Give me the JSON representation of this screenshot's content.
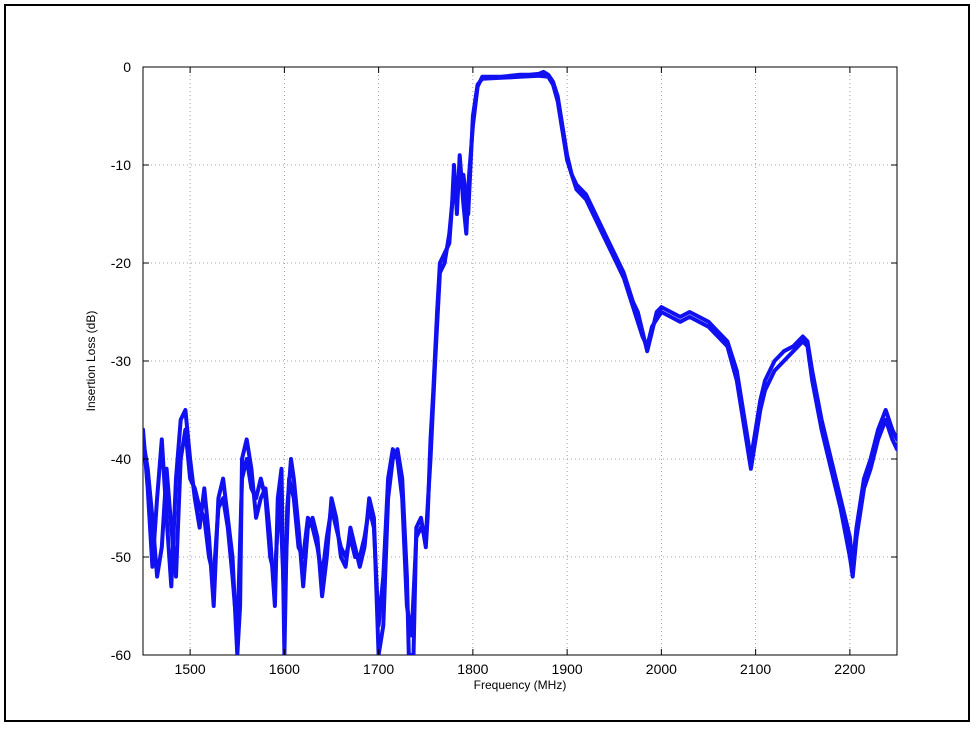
{
  "chart_data": {
    "type": "line",
    "title": "",
    "xlabel": "Frequency (MHz)",
    "ylabel": "Insertion Loss (dB)",
    "xlim": [
      1450,
      2250
    ],
    "ylim": [
      -60,
      0
    ],
    "xticks": [
      1500,
      1600,
      1700,
      1800,
      1900,
      2000,
      2100,
      2200
    ],
    "yticks": [
      0,
      -10,
      -20,
      -30,
      -40,
      -50,
      -60
    ],
    "grid": true,
    "line_color": "#1010f0",
    "series": [
      {
        "values": [
          [
            1450,
            -37
          ],
          [
            1455,
            -43
          ],
          [
            1460,
            -51
          ],
          [
            1465,
            -44
          ],
          [
            1470,
            -38
          ],
          [
            1475,
            -46
          ],
          [
            1480,
            -53
          ],
          [
            1485,
            -42
          ],
          [
            1490,
            -36
          ],
          [
            1495,
            -35
          ],
          [
            1500,
            -40
          ],
          [
            1505,
            -44
          ],
          [
            1510,
            -47
          ],
          [
            1515,
            -43
          ],
          [
            1520,
            -48
          ],
          [
            1525,
            -55
          ],
          [
            1530,
            -44
          ],
          [
            1535,
            -42
          ],
          [
            1540,
            -46
          ],
          [
            1545,
            -50
          ],
          [
            1550,
            -60
          ],
          [
            1553,
            -55
          ],
          [
            1555,
            -40
          ],
          [
            1560,
            -38
          ],
          [
            1565,
            -41
          ],
          [
            1570,
            -46
          ],
          [
            1575,
            -44
          ],
          [
            1580,
            -43
          ],
          [
            1585,
            -48
          ],
          [
            1590,
            -55
          ],
          [
            1593,
            -44
          ],
          [
            1597,
            -41
          ],
          [
            1600,
            -60
          ],
          [
            1603,
            -45
          ],
          [
            1607,
            -40
          ],
          [
            1610,
            -42
          ],
          [
            1615,
            -47
          ],
          [
            1620,
            -53
          ],
          [
            1625,
            -47
          ],
          [
            1630,
            -46
          ],
          [
            1635,
            -48
          ],
          [
            1640,
            -54
          ],
          [
            1645,
            -50
          ],
          [
            1650,
            -44
          ],
          [
            1655,
            -46
          ],
          [
            1660,
            -50
          ],
          [
            1665,
            -51
          ],
          [
            1670,
            -47
          ],
          [
            1675,
            -49
          ],
          [
            1680,
            -51
          ],
          [
            1685,
            -49
          ],
          [
            1690,
            -44
          ],
          [
            1695,
            -46
          ],
          [
            1700,
            -60
          ],
          [
            1705,
            -57
          ],
          [
            1710,
            -44
          ],
          [
            1715,
            -40
          ],
          [
            1720,
            -39
          ],
          [
            1725,
            -42
          ],
          [
            1730,
            -52
          ],
          [
            1732,
            -60
          ],
          [
            1737,
            -60
          ],
          [
            1740,
            -47
          ],
          [
            1745,
            -46
          ],
          [
            1750,
            -49
          ],
          [
            1752,
            -46
          ],
          [
            1755,
            -38
          ],
          [
            1758,
            -33
          ],
          [
            1762,
            -25
          ],
          [
            1765,
            -20
          ],
          [
            1770,
            -19
          ],
          [
            1775,
            -18
          ],
          [
            1778,
            -14
          ],
          [
            1780,
            -10
          ],
          [
            1783,
            -15
          ],
          [
            1786,
            -9
          ],
          [
            1790,
            -14
          ],
          [
            1793,
            -17
          ],
          [
            1796,
            -11
          ],
          [
            1800,
            -6
          ],
          [
            1805,
            -2
          ],
          [
            1810,
            -1
          ],
          [
            1830,
            -1
          ],
          [
            1850,
            -0.8
          ],
          [
            1860,
            -0.8
          ],
          [
            1870,
            -0.7
          ],
          [
            1875,
            -0.5
          ],
          [
            1880,
            -0.8
          ],
          [
            1885,
            -1.5
          ],
          [
            1890,
            -3
          ],
          [
            1895,
            -6
          ],
          [
            1900,
            -9
          ],
          [
            1905,
            -11
          ],
          [
            1910,
            -12
          ],
          [
            1920,
            -13
          ],
          [
            1930,
            -15
          ],
          [
            1940,
            -17
          ],
          [
            1950,
            -19
          ],
          [
            1960,
            -21
          ],
          [
            1970,
            -24
          ],
          [
            1975,
            -25
          ],
          [
            1980,
            -27
          ],
          [
            1985,
            -29
          ],
          [
            1990,
            -27
          ],
          [
            1995,
            -25
          ],
          [
            2000,
            -24.5
          ],
          [
            2010,
            -25
          ],
          [
            2020,
            -25.5
          ],
          [
            2030,
            -25
          ],
          [
            2040,
            -25.5
          ],
          [
            2050,
            -26
          ],
          [
            2060,
            -27
          ],
          [
            2070,
            -28
          ],
          [
            2080,
            -31
          ],
          [
            2090,
            -37
          ],
          [
            2095,
            -40
          ],
          [
            2100,
            -37
          ],
          [
            2105,
            -34
          ],
          [
            2110,
            -32
          ],
          [
            2120,
            -30
          ],
          [
            2130,
            -29
          ],
          [
            2140,
            -28.5
          ],
          [
            2150,
            -27.5
          ],
          [
            2155,
            -28
          ],
          [
            2160,
            -31
          ],
          [
            2170,
            -36
          ],
          [
            2180,
            -40
          ],
          [
            2190,
            -44
          ],
          [
            2200,
            -48
          ],
          [
            2203,
            -51
          ],
          [
            2207,
            -47
          ],
          [
            2215,
            -42
          ],
          [
            2222,
            -40
          ],
          [
            2230,
            -37
          ],
          [
            2238,
            -35
          ],
          [
            2245,
            -37
          ],
          [
            2250,
            -38
          ]
        ]
      },
      {
        "values": [
          [
            1450,
            -38
          ],
          [
            1455,
            -41
          ],
          [
            1460,
            -46
          ],
          [
            1465,
            -52
          ],
          [
            1470,
            -49
          ],
          [
            1475,
            -41
          ],
          [
            1480,
            -47
          ],
          [
            1485,
            -52
          ],
          [
            1490,
            -40
          ],
          [
            1495,
            -37
          ],
          [
            1500,
            -42
          ],
          [
            1505,
            -43
          ],
          [
            1510,
            -45
          ],
          [
            1515,
            -46
          ],
          [
            1520,
            -50
          ],
          [
            1525,
            -52
          ],
          [
            1530,
            -45
          ],
          [
            1535,
            -44
          ],
          [
            1540,
            -47
          ],
          [
            1545,
            -52
          ],
          [
            1550,
            -58
          ],
          [
            1555,
            -42
          ],
          [
            1560,
            -40
          ],
          [
            1565,
            -43
          ],
          [
            1570,
            -44
          ],
          [
            1575,
            -42
          ],
          [
            1580,
            -44
          ],
          [
            1585,
            -50
          ],
          [
            1590,
            -52
          ],
          [
            1595,
            -43
          ],
          [
            1600,
            -55
          ],
          [
            1605,
            -42
          ],
          [
            1610,
            -44
          ],
          [
            1615,
            -49
          ],
          [
            1620,
            -50
          ],
          [
            1625,
            -46
          ],
          [
            1630,
            -47
          ],
          [
            1635,
            -49
          ],
          [
            1640,
            -52
          ],
          [
            1645,
            -48
          ],
          [
            1650,
            -45
          ],
          [
            1655,
            -47
          ],
          [
            1660,
            -49
          ],
          [
            1665,
            -50
          ],
          [
            1670,
            -48
          ],
          [
            1675,
            -50
          ],
          [
            1680,
            -50
          ],
          [
            1685,
            -48
          ],
          [
            1690,
            -45
          ],
          [
            1695,
            -47
          ],
          [
            1700,
            -57
          ],
          [
            1705,
            -52
          ],
          [
            1710,
            -42
          ],
          [
            1715,
            -39
          ],
          [
            1720,
            -40
          ],
          [
            1725,
            -44
          ],
          [
            1730,
            -55
          ],
          [
            1735,
            -58
          ],
          [
            1740,
            -48
          ],
          [
            1745,
            -47
          ],
          [
            1750,
            -48
          ],
          [
            1755,
            -40
          ],
          [
            1760,
            -30
          ],
          [
            1765,
            -21
          ],
          [
            1770,
            -20
          ],
          [
            1775,
            -17
          ],
          [
            1780,
            -12
          ],
          [
            1785,
            -12
          ],
          [
            1790,
            -11
          ],
          [
            1795,
            -15
          ],
          [
            1800,
            -5
          ],
          [
            1805,
            -1.8
          ],
          [
            1810,
            -1.2
          ],
          [
            1830,
            -1.1
          ],
          [
            1850,
            -1
          ],
          [
            1870,
            -0.9
          ],
          [
            1880,
            -1
          ],
          [
            1885,
            -1.8
          ],
          [
            1890,
            -3.5
          ],
          [
            1895,
            -6.5
          ],
          [
            1900,
            -9.5
          ],
          [
            1910,
            -12.5
          ],
          [
            1920,
            -13.5
          ],
          [
            1930,
            -15.5
          ],
          [
            1940,
            -17.5
          ],
          [
            1950,
            -19.5
          ],
          [
            1960,
            -21.5
          ],
          [
            1970,
            -24.5
          ],
          [
            1980,
            -27.5
          ],
          [
            1985,
            -28.5
          ],
          [
            1990,
            -26.5
          ],
          [
            2000,
            -25
          ],
          [
            2010,
            -25.5
          ],
          [
            2020,
            -26
          ],
          [
            2030,
            -25.5
          ],
          [
            2040,
            -26
          ],
          [
            2050,
            -26.5
          ],
          [
            2060,
            -27.5
          ],
          [
            2070,
            -28.5
          ],
          [
            2080,
            -32
          ],
          [
            2090,
            -38
          ],
          [
            2095,
            -41
          ],
          [
            2100,
            -38
          ],
          [
            2105,
            -35
          ],
          [
            2110,
            -33
          ],
          [
            2120,
            -31
          ],
          [
            2130,
            -30
          ],
          [
            2140,
            -29
          ],
          [
            2150,
            -28
          ],
          [
            2155,
            -28.5
          ],
          [
            2160,
            -32
          ],
          [
            2170,
            -37
          ],
          [
            2180,
            -41
          ],
          [
            2190,
            -45
          ],
          [
            2200,
            -50
          ],
          [
            2203,
            -52
          ],
          [
            2207,
            -48
          ],
          [
            2215,
            -43
          ],
          [
            2222,
            -41
          ],
          [
            2230,
            -38
          ],
          [
            2238,
            -36
          ],
          [
            2245,
            -38
          ],
          [
            2250,
            -39
          ]
        ]
      }
    ]
  }
}
